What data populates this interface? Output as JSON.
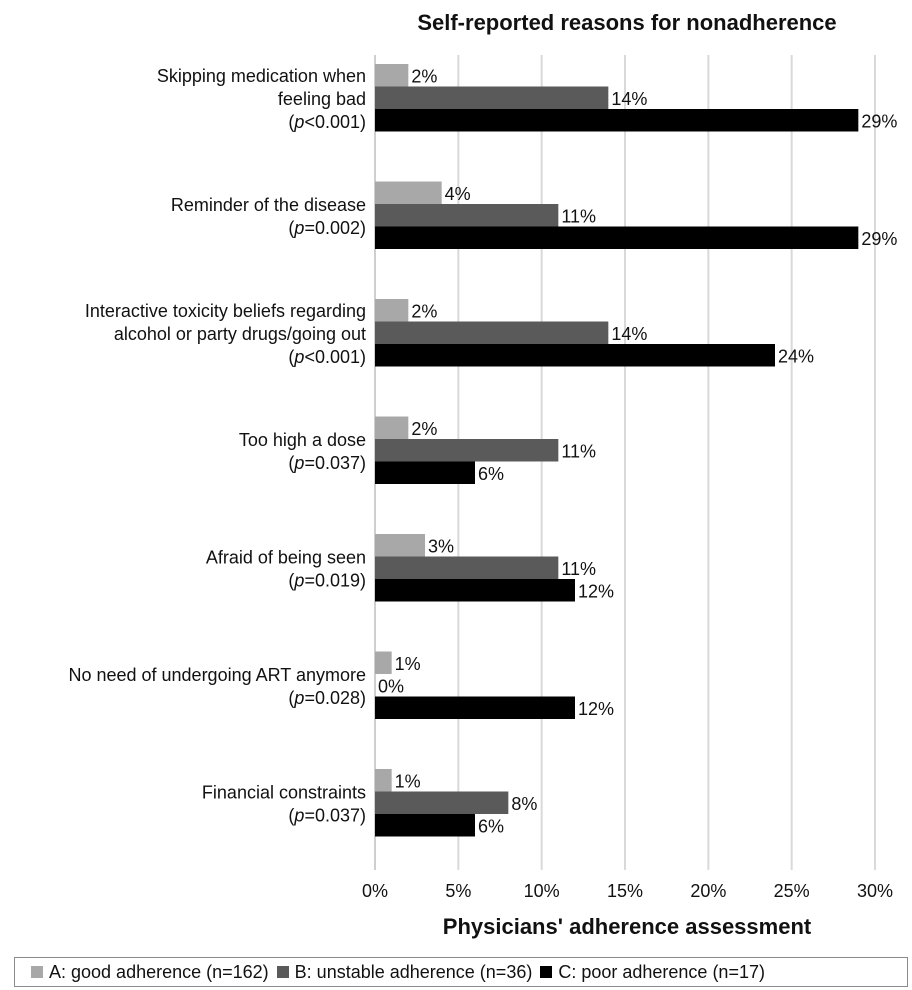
{
  "chart_data": {
    "type": "bar",
    "orientation": "horizontal",
    "title": "Self-reported reasons for nonadherence",
    "xlabel": "Physicians' adherence assessment",
    "xlim": [
      0,
      30
    ],
    "x_ticks": [
      "0%",
      "5%",
      "10%",
      "15%",
      "20%",
      "25%",
      "30%"
    ],
    "grid": true,
    "legend_position": "bottom",
    "categories": [
      {
        "lines": [
          "Skipping medication when",
          "feeling bad"
        ],
        "p_prefix": "(",
        "p_italic": "p",
        "p_rest": "<0.001)"
      },
      {
        "lines": [
          "Reminder of the disease"
        ],
        "p_prefix": "(",
        "p_italic": "p",
        "p_rest": "=0.002)"
      },
      {
        "lines": [
          "Interactive toxicity beliefs regarding",
          "alcohol or party drugs/going out"
        ],
        "p_prefix": "(",
        "p_italic": "p",
        "p_rest": "<0.001)"
      },
      {
        "lines": [
          "Too high a dose"
        ],
        "p_prefix": "(",
        "p_italic": "p",
        "p_rest": "=0.037)"
      },
      {
        "lines": [
          "Afraid of being seen"
        ],
        "p_prefix": "(",
        "p_italic": "p",
        "p_rest": "=0.019)"
      },
      {
        "lines": [
          "No need of undergoing ART anymore"
        ],
        "p_prefix": "(",
        "p_italic": "p",
        "p_rest": "=0.028)"
      },
      {
        "lines": [
          "Financial constraints"
        ],
        "p_prefix": "(",
        "p_italic": "p",
        "p_rest": "=0.037)"
      }
    ],
    "series": [
      {
        "name": "A: good adherence (n=162)",
        "color": "#a8a8a8",
        "values": [
          2,
          4,
          2,
          2,
          3,
          1,
          1
        ],
        "labels": [
          "2%",
          "4%",
          "2%",
          "2%",
          "3%",
          "1%",
          "1%"
        ]
      },
      {
        "name": "B: unstable adherence (n=36)",
        "color": "#5a5a5a",
        "values": [
          14,
          11,
          14,
          11,
          11,
          0,
          8
        ],
        "labels": [
          "14%",
          "11%",
          "14%",
          "11%",
          "11%",
          "0%",
          "8%"
        ]
      },
      {
        "name": "C: poor adherence (n=17)",
        "color": "#000000",
        "values": [
          29,
          29,
          24,
          6,
          12,
          12,
          6
        ],
        "labels": [
          "29%",
          "29%",
          "24%",
          "6%",
          "12%",
          "12%",
          "6%"
        ]
      }
    ]
  }
}
